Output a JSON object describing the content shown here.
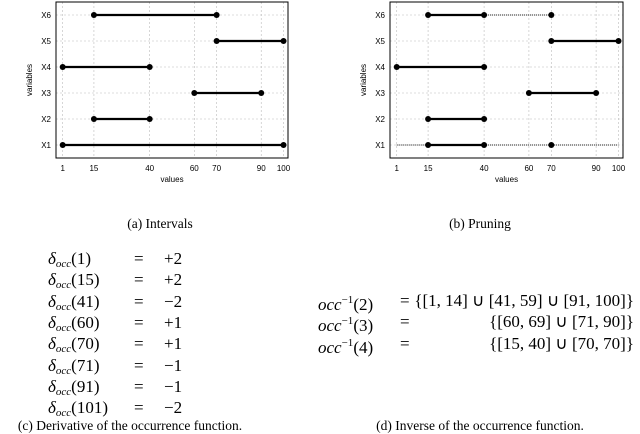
{
  "chart_data": [
    {
      "type": "interval",
      "caption": "(a) Intervals",
      "xlabel": "values",
      "ylabel": "variables",
      "xticks": [
        1,
        15,
        40,
        60,
        70,
        90,
        100
      ],
      "categories": [
        "X1",
        "X2",
        "X3",
        "X4",
        "X5",
        "X6"
      ],
      "xlim": [
        -2,
        102
      ],
      "grid": true,
      "intervals": [
        {
          "variable": "X1",
          "solid": [
            [
              1,
              100
            ]
          ],
          "dotted": [],
          "points": [
            1,
            100
          ]
        },
        {
          "variable": "X2",
          "solid": [
            [
              15,
              40
            ]
          ],
          "dotted": [],
          "points": [
            15,
            40
          ]
        },
        {
          "variable": "X3",
          "solid": [
            [
              60,
              90
            ]
          ],
          "dotted": [],
          "points": [
            60,
            90
          ]
        },
        {
          "variable": "X4",
          "solid": [
            [
              1,
              40
            ]
          ],
          "dotted": [],
          "points": [
            1,
            40
          ]
        },
        {
          "variable": "X5",
          "solid": [
            [
              70,
              100
            ]
          ],
          "dotted": [],
          "points": [
            70,
            100
          ]
        },
        {
          "variable": "X6",
          "solid": [
            [
              15,
              70
            ]
          ],
          "dotted": [],
          "points": [
            15,
            70
          ]
        }
      ]
    },
    {
      "type": "interval",
      "caption": "(b) Pruning",
      "xlabel": "values",
      "ylabel": "variables",
      "xticks": [
        1,
        15,
        40,
        60,
        70,
        90,
        100
      ],
      "categories": [
        "X1",
        "X2",
        "X3",
        "X4",
        "X5",
        "X6"
      ],
      "xlim": [
        -2,
        102
      ],
      "grid": true,
      "intervals": [
        {
          "variable": "X1",
          "solid": [
            [
              15,
              40
            ]
          ],
          "dotted": [
            [
              1,
              15
            ],
            [
              40,
              100
            ]
          ],
          "points": [
            15,
            40,
            70
          ]
        },
        {
          "variable": "X2",
          "solid": [
            [
              15,
              40
            ]
          ],
          "dotted": [],
          "points": [
            15,
            40
          ]
        },
        {
          "variable": "X3",
          "solid": [
            [
              60,
              90
            ]
          ],
          "dotted": [],
          "points": [
            60,
            90
          ]
        },
        {
          "variable": "X4",
          "solid": [
            [
              1,
              40
            ]
          ],
          "dotted": [],
          "points": [
            1,
            40
          ]
        },
        {
          "variable": "X5",
          "solid": [
            [
              70,
              100
            ]
          ],
          "dotted": [],
          "points": [
            70,
            100
          ]
        },
        {
          "variable": "X6",
          "solid": [
            [
              15,
              40
            ]
          ],
          "dotted": [
            [
              40,
              70
            ]
          ],
          "points": [
            15,
            40,
            70
          ]
        }
      ]
    }
  ],
  "derivative": {
    "caption": "(c) Derivative of the occurrence function.",
    "symbol": "δ",
    "subscript": "occ",
    "equals": "=",
    "rows": [
      {
        "arg": "(1)",
        "value": "+2"
      },
      {
        "arg": "(15)",
        "value": "+2"
      },
      {
        "arg": "(41)",
        "value": "−2"
      },
      {
        "arg": "(60)",
        "value": "+1"
      },
      {
        "arg": "(70)",
        "value": "+1"
      },
      {
        "arg": "(71)",
        "value": "−1"
      },
      {
        "arg": "(91)",
        "value": "−1"
      },
      {
        "arg": "(101)",
        "value": "−2"
      }
    ]
  },
  "inverse": {
    "caption": "(d) Inverse of the occurrence function.",
    "fn": "occ",
    "sup": "−1",
    "equals": "=",
    "rows": [
      {
        "arg": "(2)",
        "value": "{[1, 14] ∪ [41, 59] ∪ [91, 100]}"
      },
      {
        "arg": "(3)",
        "value": "{[60, 69] ∪ [71, 90]}"
      },
      {
        "arg": "(4)",
        "value": "{[15, 40] ∪ [70, 70]}"
      }
    ]
  }
}
